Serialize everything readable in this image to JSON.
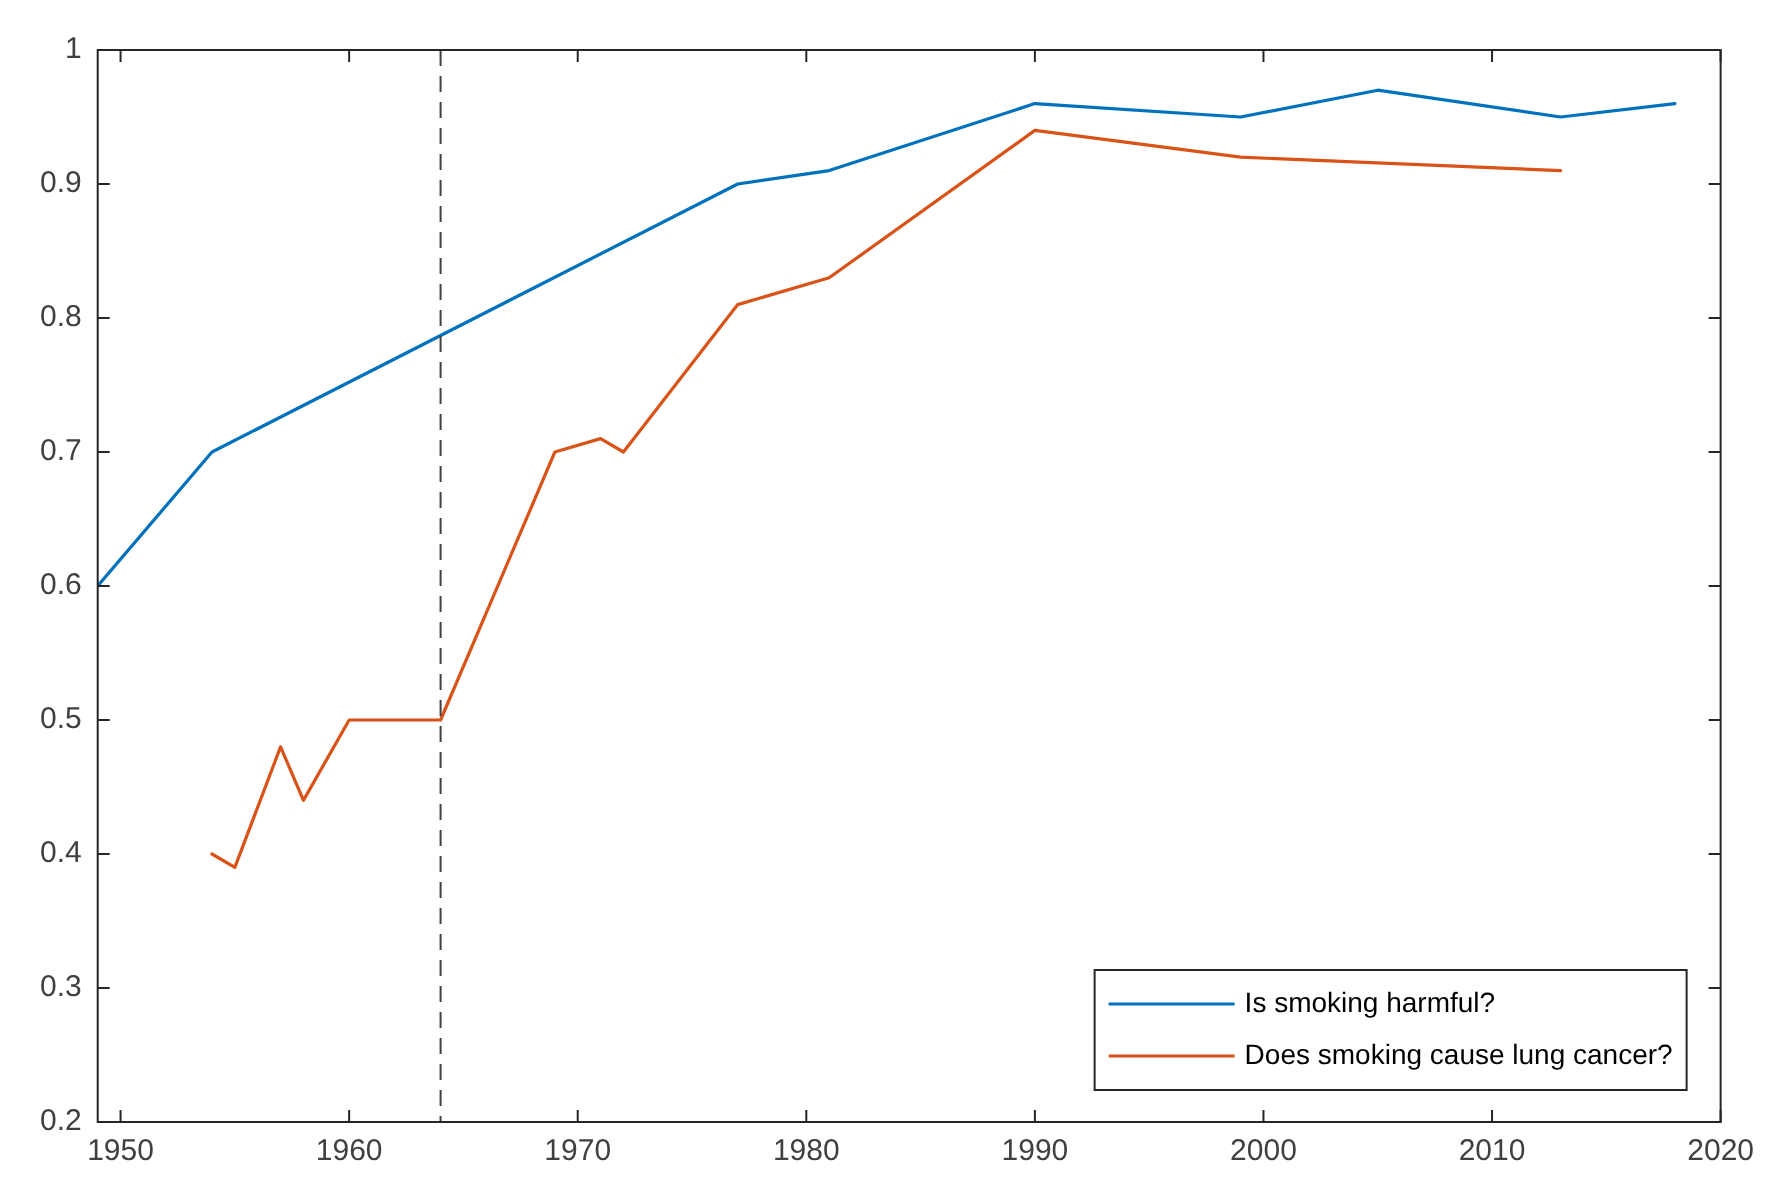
{
  "chart_data": {
    "type": "line",
    "xlim": [
      1949,
      2020
    ],
    "xticks": [
      1950,
      1960,
      1970,
      1980,
      1990,
      2000,
      2010,
      2020
    ],
    "ylim": [
      0.2,
      1
    ],
    "yticks": [
      0.2,
      0.3,
      0.4,
      0.5,
      0.6,
      0.7,
      0.8,
      0.9,
      1
    ],
    "grid": false,
    "legend": "bottom right",
    "marker": "none",
    "line_style": "solid",
    "series": [
      {
        "name": "Is smoking harmful?",
        "color": "#0072bd",
        "x": [
          1949,
          1954,
          1977,
          1981,
          1990,
          1999,
          2005,
          2013,
          2018
        ],
        "values": [
          0.6,
          0.7,
          0.9,
          0.91,
          0.96,
          0.95,
          0.97,
          0.95,
          0.96
        ]
      },
      {
        "name": "Does smoking cause lung cancer?",
        "color": "#d95319",
        "x": [
          1954,
          1955,
          1957,
          1958,
          1960,
          1964,
          1969,
          1971,
          1972,
          1977,
          1981,
          1990,
          1999,
          2013
        ],
        "values": [
          0.4,
          0.39,
          0.48,
          0.44,
          0.5,
          0.5,
          0.7,
          0.71,
          0.7,
          0.81,
          0.83,
          0.94,
          0.92,
          0.91
        ]
      }
    ],
    "ref_lines": [
      {
        "axis": "x",
        "value": 1964,
        "color": "#404040",
        "line_style": "dashed"
      }
    ]
  }
}
